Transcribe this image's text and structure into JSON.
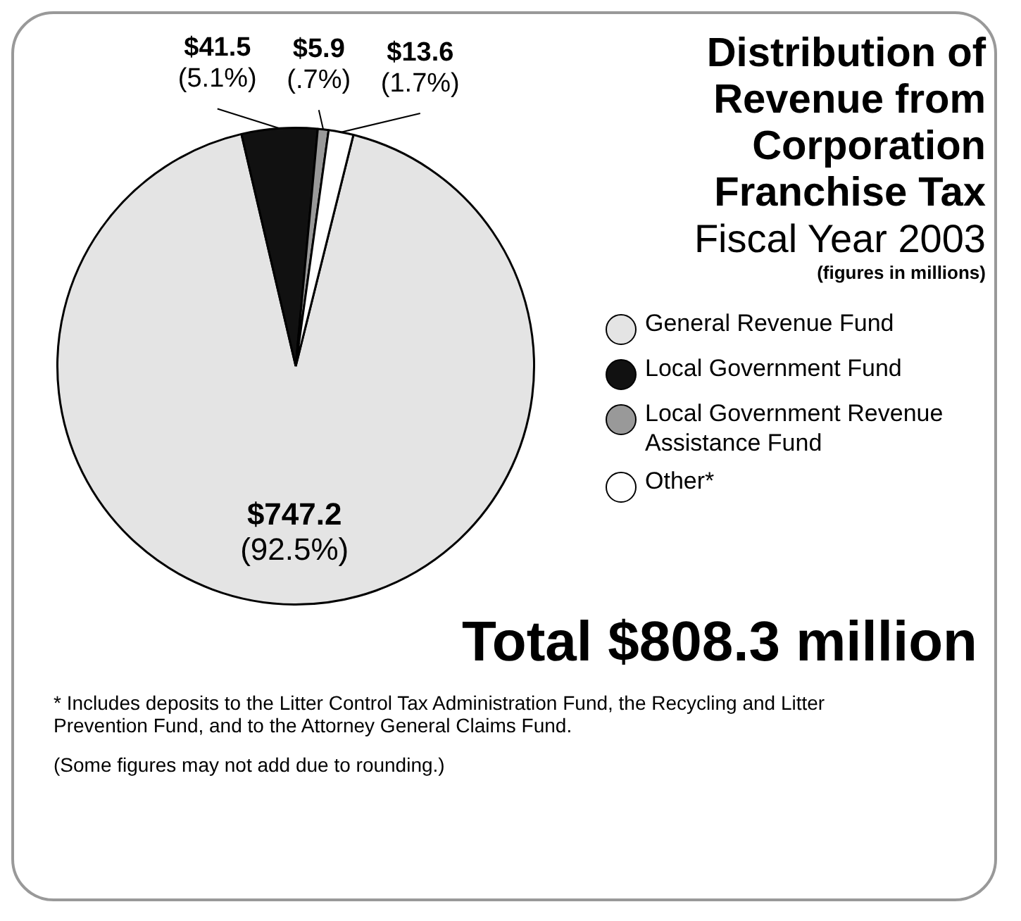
{
  "chart_data": {
    "type": "pie",
    "title": "Distribution of Revenue from Corporation Franchise Tax",
    "subtitle": "Fiscal Year 2003",
    "categories": [
      "General Revenue Fund",
      "Local Government Fund",
      "Local Government Revenue Assistance Fund",
      "Other*"
    ],
    "values": [
      747.2,
      41.5,
      5.9,
      13.6
    ],
    "colors": [
      "#e4e4e4",
      "#111111",
      "#999999",
      "#ffffff"
    ],
    "value_labels": [
      "$747.2\n(92.5%)",
      "$41.5\n(5.1%)",
      "$5.9\n(.7%)",
      "$13.6\n(1.7%)"
    ],
    "legend": "right",
    "annotations": [
      "(figures in millions)",
      "Total $808.3 million",
      "* Includes deposits to the Litter Control Tax Administration Fund, the Recycling and Litter Prevention Fund, and to the Attorney General Claims Fund.",
      "(Some figures may not add due to rounding.)"
    ]
  }
}
